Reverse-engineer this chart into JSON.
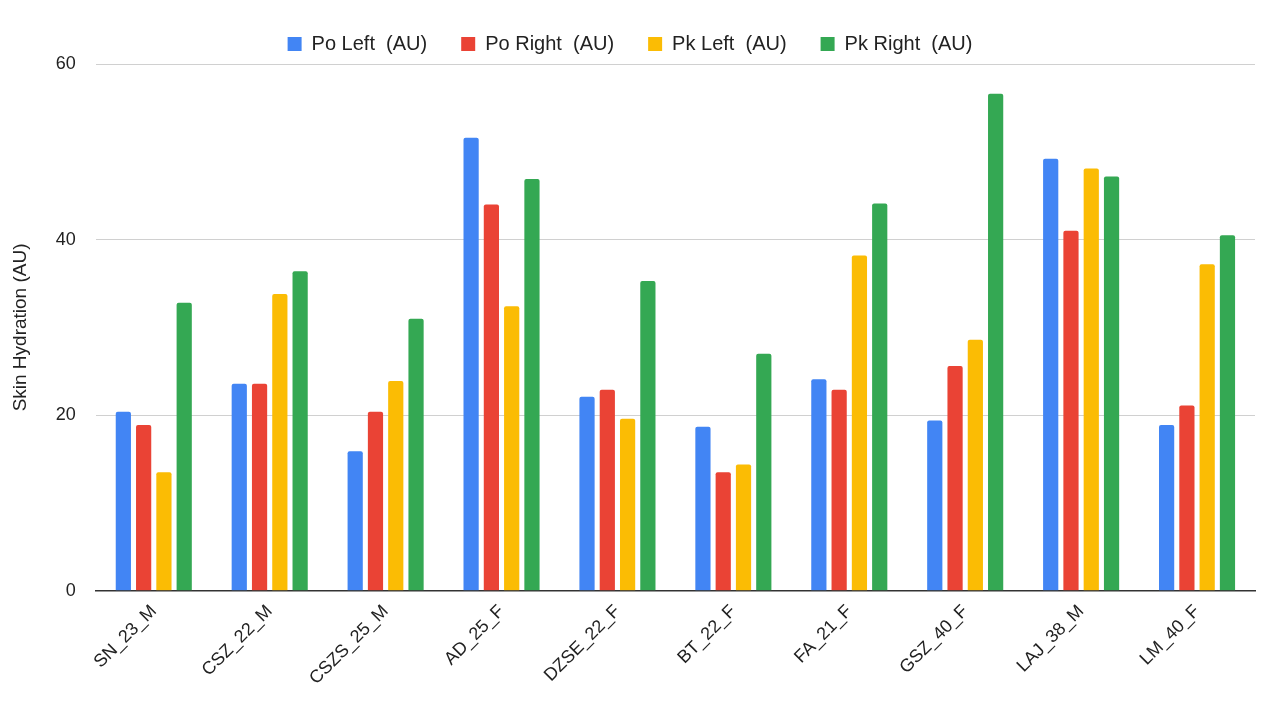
{
  "chart_data": {
    "type": "bar",
    "ylabel": "Skin Hydration (AU)",
    "categories": [
      "SN_23_M",
      "CSZ_22_M",
      "CSZS_25_M",
      "AD_25_F",
      "DZSE_22_F",
      "BT_22_F",
      "FA_21_F",
      "GSZ_40_F",
      "LAJ_38_M",
      "LM_40_F"
    ],
    "series": [
      {
        "name": "Po Left  (AU)",
        "color": "#4285f4",
        "values": [
          20.4,
          23.6,
          15.9,
          51.6,
          22.1,
          18.7,
          24.1,
          19.4,
          49.2,
          18.9
        ]
      },
      {
        "name": "Po Right  (AU)",
        "color": "#ea4335",
        "values": [
          18.9,
          23.6,
          20.4,
          44.0,
          22.9,
          13.5,
          22.9,
          25.6,
          41.0,
          21.1
        ]
      },
      {
        "name": "Pk Left  (AU)",
        "color": "#fbbc04",
        "values": [
          13.5,
          33.8,
          23.9,
          32.4,
          19.6,
          14.4,
          38.2,
          28.6,
          48.1,
          37.2
        ]
      },
      {
        "name": "Pk Right  (AU)",
        "color": "#34a853",
        "values": [
          32.8,
          36.4,
          31.0,
          46.9,
          35.3,
          27.0,
          44.1,
          56.6,
          47.2,
          40.5
        ]
      }
    ],
    "ylim": [
      0,
      60
    ],
    "yticks": [
      0,
      20,
      40,
      60
    ],
    "grid": "y",
    "legend": "top"
  }
}
